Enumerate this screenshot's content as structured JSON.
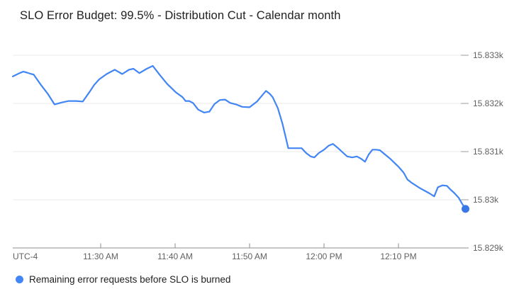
{
  "chart": {
    "title": "SLO Error Budget: 99.5% - Distribution Cut - Calendar month",
    "timezone_label": "UTC-4",
    "legend": {
      "series_label": "Remaining error requests before SLO is burned"
    }
  },
  "colors": {
    "line": "#4285F4",
    "end_dot": "#3B78E7",
    "grid": "#E8E8E8",
    "axis": "#8E8E8E",
    "tick": "#9E9E9E",
    "tick_label": "#616161",
    "background": "#FFFFFF"
  },
  "chart_data": {
    "type": "line",
    "title": "SLO Error Budget: 99.5% - Distribution Cut - Calendar month",
    "xlabel": "",
    "ylabel": "",
    "x_unit": "minutes since 11:00 AM (UTC-4)",
    "xlim_minutes": [
      18.2,
      79.0
    ],
    "ylim": [
      15828.97,
      15833.3
    ],
    "grid": "horizontal",
    "legend_position": "bottom-left",
    "end_dot": true,
    "x_ticks": [
      {
        "m": 30,
        "label": "11:30 AM"
      },
      {
        "m": 40,
        "label": "11:40 AM"
      },
      {
        "m": 50,
        "label": "11:50 AM"
      },
      {
        "m": 60,
        "label": "12:00 PM"
      },
      {
        "m": 70,
        "label": "12:10 PM"
      }
    ],
    "y_ticks": [
      {
        "v": 15833,
        "label": "15.833k"
      },
      {
        "v": 15832,
        "label": "15.832k"
      },
      {
        "v": 15831,
        "label": "15.831k"
      },
      {
        "v": 15830,
        "label": "15.83k"
      },
      {
        "v": 15829,
        "label": "15.829k"
      }
    ],
    "series": [
      {
        "name": "Remaining error requests before SLO is burned",
        "color": "#4285F4",
        "points": [
          [
            18.2,
            15832.56
          ],
          [
            19.1,
            15832.63
          ],
          [
            19.6,
            15832.66
          ],
          [
            20.1,
            15832.64
          ],
          [
            20.7,
            15832.61
          ],
          [
            21.0,
            15832.6
          ],
          [
            22.0,
            15832.38
          ],
          [
            22.9,
            15832.2
          ],
          [
            23.8,
            15831.98
          ],
          [
            24.8,
            15832.02
          ],
          [
            25.7,
            15832.05
          ],
          [
            26.7,
            15832.05
          ],
          [
            27.6,
            15832.04
          ],
          [
            28.6,
            15832.26
          ],
          [
            29.1,
            15832.38
          ],
          [
            29.8,
            15832.5
          ],
          [
            30.8,
            15832.61
          ],
          [
            31.9,
            15832.7
          ],
          [
            32.9,
            15832.61
          ],
          [
            33.8,
            15832.7
          ],
          [
            34.4,
            15832.72
          ],
          [
            35.2,
            15832.63
          ],
          [
            36.2,
            15832.72
          ],
          [
            37.0,
            15832.78
          ],
          [
            37.9,
            15832.6
          ],
          [
            38.9,
            15832.41
          ],
          [
            40.1,
            15832.23
          ],
          [
            41.0,
            15832.13
          ],
          [
            41.4,
            15832.05
          ],
          [
            41.9,
            15832.05
          ],
          [
            42.4,
            15832.01
          ],
          [
            43.1,
            15831.87
          ],
          [
            43.9,
            15831.81
          ],
          [
            44.6,
            15831.83
          ],
          [
            45.3,
            15831.99
          ],
          [
            46.0,
            15832.07
          ],
          [
            46.7,
            15832.08
          ],
          [
            47.4,
            15832.01
          ],
          [
            48.2,
            15831.98
          ],
          [
            49.0,
            15831.93
          ],
          [
            50.0,
            15831.92
          ],
          [
            51.0,
            15832.04
          ],
          [
            51.7,
            15832.17
          ],
          [
            52.2,
            15832.26
          ],
          [
            52.7,
            15832.2
          ],
          [
            53.1,
            15832.13
          ],
          [
            53.8,
            15831.9
          ],
          [
            54.4,
            15831.59
          ],
          [
            54.9,
            15831.27
          ],
          [
            55.2,
            15831.07
          ],
          [
            56.2,
            15831.07
          ],
          [
            57.0,
            15831.07
          ],
          [
            57.6,
            15830.97
          ],
          [
            58.2,
            15830.9
          ],
          [
            58.7,
            15830.88
          ],
          [
            59.3,
            15830.97
          ],
          [
            60.0,
            15831.04
          ],
          [
            60.6,
            15831.12
          ],
          [
            61.2,
            15831.16
          ],
          [
            61.9,
            15831.07
          ],
          [
            62.6,
            15830.97
          ],
          [
            63.1,
            15830.9
          ],
          [
            63.8,
            15830.88
          ],
          [
            64.4,
            15830.9
          ],
          [
            65.0,
            15830.85
          ],
          [
            65.5,
            15830.79
          ],
          [
            66.0,
            15830.94
          ],
          [
            66.5,
            15831.04
          ],
          [
            67.0,
            15831.04
          ],
          [
            67.5,
            15831.03
          ],
          [
            68.2,
            15830.94
          ],
          [
            68.9,
            15830.85
          ],
          [
            69.5,
            15830.76
          ],
          [
            70.1,
            15830.67
          ],
          [
            70.7,
            15830.56
          ],
          [
            71.2,
            15830.42
          ],
          [
            71.8,
            15830.35
          ],
          [
            72.4,
            15830.29
          ],
          [
            72.9,
            15830.24
          ],
          [
            73.5,
            15830.19
          ],
          [
            74.1,
            15830.14
          ],
          [
            74.8,
            15830.07
          ],
          [
            75.3,
            15830.26
          ],
          [
            75.9,
            15830.3
          ],
          [
            76.5,
            15830.29
          ],
          [
            77.0,
            15830.21
          ],
          [
            77.5,
            15830.14
          ],
          [
            78.1,
            15830.04
          ],
          [
            78.5,
            15829.93
          ],
          [
            79.0,
            15829.81
          ]
        ]
      }
    ]
  }
}
